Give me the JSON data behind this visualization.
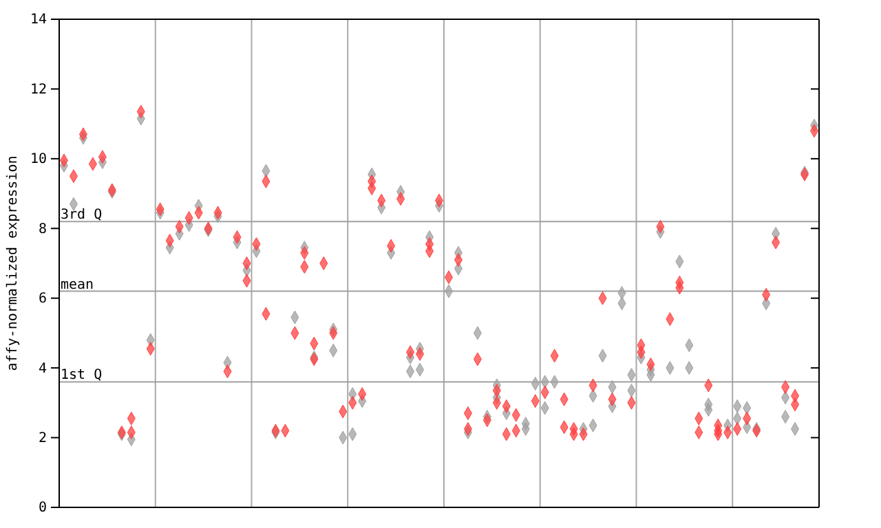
{
  "chart_data": {
    "type": "scatter",
    "ylabel": "affy-normalized expression",
    "categories": [
      null,
      null,
      null,
      null,
      null,
      null,
      null,
      null,
      null,
      null,
      null,
      null,
      null,
      null,
      null,
      null,
      null,
      null,
      null,
      null,
      null,
      null,
      null,
      null,
      null,
      null,
      null,
      null,
      null,
      null,
      null,
      null,
      null,
      null,
      null,
      null,
      null,
      null,
      null,
      null,
      null,
      null,
      null,
      null,
      null,
      null,
      null,
      null,
      null,
      null,
      null,
      null,
      null,
      null,
      null,
      null,
      null,
      null,
      null,
      null,
      null,
      null,
      null,
      null,
      null,
      null,
      null,
      null,
      null,
      null,
      null,
      null,
      null,
      null,
      null,
      null,
      null,
      null,
      null
    ],
    "ylim": [
      0,
      14
    ],
    "yticks": [
      0,
      2,
      4,
      6,
      8,
      10,
      12,
      14
    ],
    "grid": "x",
    "marker": "diamond",
    "ref_lines": [
      {
        "axis": "y",
        "value": 8.2,
        "label": "3rd Q",
        "color": "#a0a0a0"
      },
      {
        "axis": "y",
        "value": 6.2,
        "label": "mean",
        "color": "#a0a0a0"
      },
      {
        "axis": "y",
        "value": 3.6,
        "label": "1st Q",
        "color": "#a0a0a0"
      }
    ],
    "series": [
      {
        "color": "#a0a0a0",
        "values": [
          9.8,
          8.7,
          10.6,
          null,
          9.9,
          9.05,
          2.1,
          1.95,
          11.15,
          4.8,
          8.45,
          7.45,
          7.85,
          8.1,
          8.65,
          7.95,
          8.35,
          4.15,
          7.6,
          6.8,
          7.35,
          9.65,
          2.15,
          null,
          5.45,
          7.45,
          4.3,
          null,
          5.1,
          2.0,
          3.25,
          3.05,
          9.55,
          8.6,
          7.3,
          9.05,
          4.3,
          4.55,
          7.75,
          8.65,
          6.2,
          7.3,
          2.15,
          5.0,
          2.6,
          3.5,
          2.7,
          null,
          2.4,
          3.55,
          3.6,
          3.6,
          null,
          null,
          2.25,
          3.2,
          4.35,
          3.45,
          6.15,
          3.8,
          4.3,
          3.95,
          7.9,
          4.0,
          7.05,
          4.65,
          null,
          2.95,
          null,
          2.35,
          2.9,
          2.85,
          2.25,
          5.85,
          7.85,
          3.15,
          2.25,
          9.6,
          10.95
        ]
      },
      {
        "color": "#a0a0a0",
        "values": [
          null,
          null,
          null,
          null,
          null,
          null,
          null,
          null,
          null,
          null,
          null,
          null,
          null,
          null,
          null,
          null,
          null,
          null,
          null,
          null,
          null,
          null,
          null,
          null,
          null,
          null,
          null,
          null,
          4.5,
          null,
          2.1,
          null,
          null,
          null,
          null,
          null,
          3.9,
          3.95,
          null,
          null,
          null,
          6.85,
          null,
          null,
          null,
          3.15,
          null,
          null,
          2.25,
          null,
          2.85,
          null,
          null,
          null,
          null,
          2.35,
          null,
          2.9,
          5.85,
          3.35,
          null,
          3.8,
          null,
          null,
          null,
          4.0,
          null,
          2.8,
          null,
          null,
          2.55,
          2.3,
          null,
          null,
          null,
          2.6,
          null,
          null,
          null
        ]
      },
      {
        "color": "#ff4040",
        "values": [
          9.95,
          9.5,
          10.7,
          9.85,
          10.05,
          9.1,
          2.15,
          2.55,
          11.35,
          4.55,
          8.55,
          7.65,
          8.05,
          8.3,
          8.45,
          8.0,
          8.45,
          3.9,
          7.75,
          7.0,
          7.55,
          9.35,
          2.2,
          2.2,
          5.0,
          7.3,
          4.7,
          7.0,
          5.0,
          2.75,
          3.0,
          3.25,
          9.35,
          8.8,
          7.5,
          8.85,
          4.45,
          4.4,
          7.55,
          8.8,
          6.6,
          7.1,
          2.7,
          4.25,
          2.5,
          3.35,
          2.9,
          2.65,
          null,
          3.05,
          3.3,
          4.35,
          3.1,
          2.25,
          2.1,
          3.5,
          6.0,
          3.1,
          null,
          3.0,
          4.65,
          4.1,
          8.05,
          5.4,
          6.45,
          null,
          2.55,
          3.5,
          2.35,
          2.15,
          2.25,
          2.55,
          2.2,
          6.1,
          7.6,
          3.45,
          3.2,
          9.55,
          10.8
        ]
      },
      {
        "color": "#ff4040",
        "values": [
          null,
          null,
          null,
          null,
          null,
          null,
          null,
          2.15,
          null,
          null,
          null,
          null,
          null,
          null,
          null,
          null,
          null,
          null,
          null,
          6.5,
          null,
          5.55,
          null,
          null,
          null,
          6.9,
          4.25,
          null,
          null,
          null,
          null,
          null,
          9.15,
          null,
          null,
          null,
          null,
          null,
          7.35,
          null,
          null,
          null,
          2.25,
          null,
          null,
          3.0,
          2.1,
          2.2,
          null,
          null,
          null,
          null,
          2.3,
          2.1,
          null,
          null,
          null,
          null,
          null,
          null,
          4.45,
          null,
          null,
          null,
          6.3,
          null,
          2.15,
          null,
          2.2,
          null,
          null,
          null,
          null,
          null,
          null,
          null,
          2.95,
          null,
          null
        ]
      },
      {
        "color": "#ff4040",
        "values": [
          null,
          null,
          null,
          null,
          null,
          null,
          null,
          null,
          null,
          null,
          null,
          null,
          null,
          null,
          null,
          null,
          null,
          null,
          null,
          null,
          null,
          null,
          null,
          null,
          null,
          null,
          null,
          null,
          null,
          null,
          null,
          null,
          null,
          null,
          null,
          null,
          null,
          null,
          null,
          null,
          null,
          null,
          null,
          null,
          null,
          null,
          null,
          null,
          null,
          null,
          null,
          null,
          null,
          null,
          null,
          null,
          null,
          null,
          null,
          null,
          null,
          null,
          null,
          null,
          null,
          null,
          null,
          null,
          2.1,
          null,
          null,
          null,
          null,
          null,
          null,
          null,
          null,
          null,
          null
        ]
      }
    ]
  }
}
